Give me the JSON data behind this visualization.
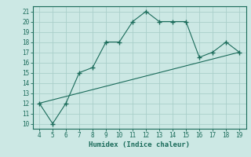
{
  "x": [
    4,
    5,
    6,
    7,
    8,
    9,
    10,
    11,
    12,
    13,
    14,
    15,
    16,
    17,
    18,
    19
  ],
  "y": [
    12,
    10,
    12,
    15,
    15.5,
    18,
    18,
    20,
    21,
    20,
    20,
    20,
    16.5,
    17,
    18,
    17
  ],
  "trend_x": [
    4,
    19
  ],
  "trend_y": [
    12,
    17
  ],
  "line_color": "#1a6b5a",
  "bg_color": "#cce8e4",
  "grid_color": "#aacfca",
  "xlabel": "Humidex (Indice chaleur)",
  "xlim": [
    3.5,
    19.5
  ],
  "ylim": [
    9.5,
    21.5
  ],
  "xticks": [
    4,
    5,
    6,
    7,
    8,
    9,
    10,
    11,
    12,
    13,
    14,
    15,
    16,
    17,
    18,
    19
  ],
  "yticks": [
    10,
    11,
    12,
    13,
    14,
    15,
    16,
    17,
    18,
    19,
    20,
    21
  ]
}
